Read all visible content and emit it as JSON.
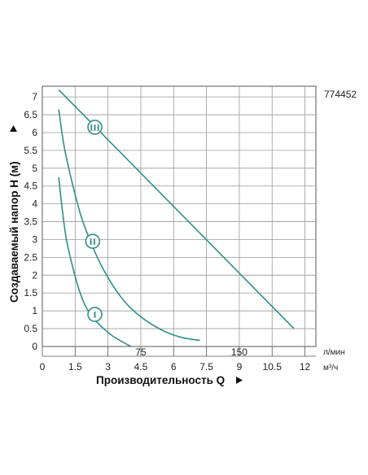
{
  "chart_data": {
    "type": "line",
    "model_code": "774452",
    "xlabel": "Производительность Q",
    "ylabel": "Создаваемый напор H (м)",
    "x_unit": "м³/ч",
    "x2_unit": "л/мин",
    "xlim": [
      0,
      12.5
    ],
    "ylim": [
      0,
      7.3
    ],
    "x_ticks": [
      0,
      1.5,
      3,
      4.5,
      6,
      7.5,
      9,
      10.5,
      12
    ],
    "x_tick_labels": [
      "0",
      "1.5",
      "3",
      "4.5",
      "6",
      "7.5",
      "9",
      "10.5",
      "12"
    ],
    "y_ticks": [
      0,
      0.5,
      1,
      1.5,
      2,
      2.5,
      3,
      3.5,
      4,
      4.5,
      5,
      5.5,
      6,
      6.5,
      7
    ],
    "y_tick_labels": [
      "0",
      "0.5",
      "1",
      "1.5",
      "2",
      "2.5",
      "3",
      "3.5",
      "4",
      "4.5",
      "5",
      "5.5",
      "6",
      "6.5",
      "7"
    ],
    "x2_ticks": [
      {
        "value": 75,
        "label": "75"
      },
      {
        "value": 150,
        "label": "150"
      }
    ],
    "grid": true,
    "line_color": "#2f8f8c",
    "series": [
      {
        "name": "I",
        "x": [
          0.75,
          0.9,
          1.1,
          1.4,
          1.7,
          2.0,
          2.4,
          2.8,
          3.2,
          3.6,
          4.05
        ],
        "y": [
          4.75,
          3.9,
          3.0,
          2.2,
          1.55,
          1.1,
          0.75,
          0.5,
          0.3,
          0.15,
          0.0
        ],
        "marker_at": [
          2.4,
          0.9
        ]
      },
      {
        "name": "II",
        "x": [
          0.75,
          1.0,
          1.4,
          1.8,
          2.3,
          2.8,
          3.4,
          4.0,
          4.8,
          5.6,
          6.4,
          7.2
        ],
        "y": [
          6.65,
          5.6,
          4.5,
          3.6,
          2.8,
          2.15,
          1.55,
          1.1,
          0.7,
          0.42,
          0.25,
          0.17
        ],
        "marker_at": [
          2.3,
          2.95
        ]
      },
      {
        "name": "III",
        "x": [
          0.75,
          11.5
        ],
        "y": [
          7.2,
          0.5
        ],
        "marker_at": [
          2.4,
          6.15
        ]
      }
    ]
  }
}
